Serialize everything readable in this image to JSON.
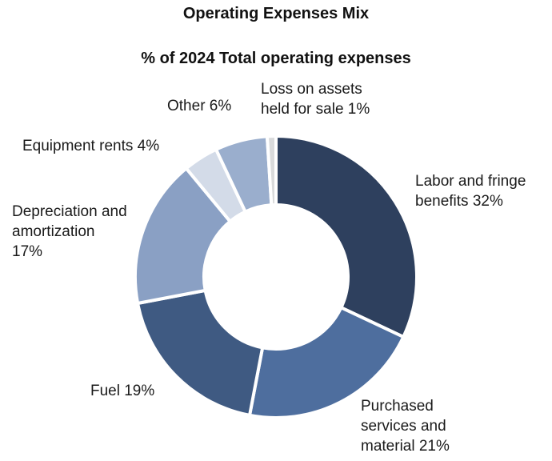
{
  "chart_data": {
    "type": "pie",
    "title": "Operating Expenses Mix",
    "subtitle": "% of 2024 Total operating expenses",
    "slices": [
      {
        "label_lines": [
          "Labor and fringe",
          "benefits 32%"
        ],
        "value": 32,
        "color": "#2e405e"
      },
      {
        "label_lines": [
          "Purchased",
          "services and",
          "material 21%"
        ],
        "value": 21,
        "color": "#4e6e9e"
      },
      {
        "label_lines": [
          "Fuel 19%"
        ],
        "value": 19,
        "color": "#3f5a82"
      },
      {
        "label_lines": [
          "Depreciation and",
          "amortization",
          "17%"
        ],
        "value": 17,
        "color": "#8aa0c4"
      },
      {
        "label_lines": [
          "Equipment rents 4%"
        ],
        "value": 4,
        "color": "#d3dbe8"
      },
      {
        "label_lines": [
          "Other 6%"
        ],
        "value": 6,
        "color": "#9aaecd"
      },
      {
        "label_lines": [
          "Loss on assets",
          "held for sale 1%"
        ],
        "value": 1,
        "color": "#d9dadb"
      }
    ]
  }
}
